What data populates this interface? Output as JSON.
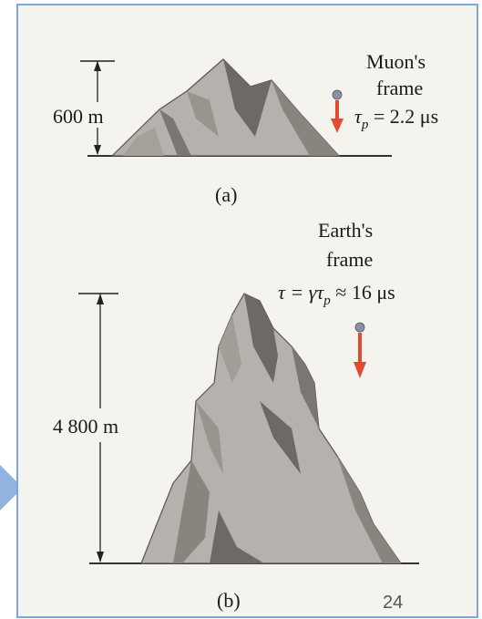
{
  "colors": {
    "frame_border": "#7da7d9",
    "panel_background": "#f5f3ee",
    "mountain_light": "#b6b1ac",
    "mountain_mid": "#9a948f",
    "mountain_dark": "#6e6964",
    "arrow": "#e24a33",
    "muon_dot": "#8a8fa6",
    "nav_arrow": "#7da7d9"
  },
  "panel_a": {
    "height_label": "600 m",
    "frame_line1": "Muon's",
    "frame_line2": "frame",
    "tau_symbol": "τ",
    "tau_subscript": "p",
    "tau_rest": " = 2.2 μs",
    "caption": "(a)"
  },
  "panel_b": {
    "height_label": "4 800 m",
    "frame_line1": "Earth's",
    "frame_line2": "frame",
    "tau_main": "τ = γτ",
    "tau_subscript": "p",
    "tau_rest": " ≈ 16 μs",
    "caption": "(b)"
  },
  "slide_number": "24"
}
